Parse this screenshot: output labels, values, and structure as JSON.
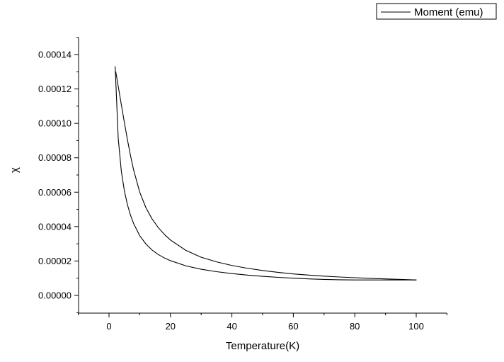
{
  "chart_data": {
    "type": "line",
    "title": "",
    "xlabel": "Temperature(K)",
    "ylabel": "χ",
    "xlim": [
      -10,
      110
    ],
    "ylim": [
      -1e-05,
      0.000155
    ],
    "x_ticks": [
      0,
      20,
      40,
      60,
      80,
      100
    ],
    "x_tick_labels": [
      "0",
      "20",
      "40",
      "60",
      "80",
      "100"
    ],
    "y_ticks": [
      0,
      2e-05,
      4e-05,
      6e-05,
      8e-05,
      0.0001,
      0.00012,
      0.00014
    ],
    "y_tick_labels": [
      "0.00000",
      "0.00002",
      "0.00004",
      "0.00006",
      "0.00008",
      "0.00010",
      "0.00012",
      "0.00014"
    ],
    "grid": false,
    "legend_position": "top-right",
    "series": [
      {
        "name": "Moment (emu)",
        "color": "#000000",
        "x": [
          2,
          3,
          4,
          5,
          6,
          7,
          8,
          10,
          12,
          14,
          16,
          18,
          20,
          25,
          30,
          35,
          40,
          45,
          50,
          55,
          60,
          65,
          70,
          75,
          80,
          85,
          90,
          95,
          100
        ],
        "y": [
          0.000133,
          9.13e-05,
          7.23e-05,
          6.08e-05,
          5.27e-05,
          4.66e-05,
          4.18e-05,
          3.47e-05,
          2.99e-05,
          2.64e-05,
          2.38e-05,
          2.18e-05,
          2.02e-05,
          1.72e-05,
          1.52e-05,
          1.38e-05,
          1.27e-05,
          1.18e-05,
          1.11e-05,
          1.05e-05,
          1e-05,
          9.6e-06,
          9.3e-06,
          9.1e-06,
          9e-06,
          9e-06,
          9e-06,
          9e-06,
          9e-06
        ]
      },
      {
        "name": "",
        "color": "#000000",
        "x": [
          100,
          95,
          90,
          85,
          80,
          75,
          70,
          65,
          60,
          55,
          50,
          45,
          40,
          35,
          30,
          25,
          20,
          18,
          16,
          14,
          12,
          10,
          8,
          7,
          6,
          5,
          4,
          3,
          2.2
        ],
        "y": [
          9e-06,
          9.3e-06,
          9.6e-06,
          9.9e-06,
          1.03e-05,
          1.07e-05,
          1.12e-05,
          1.18e-05,
          1.25e-05,
          1.34e-05,
          1.45e-05,
          1.58e-05,
          1.74e-05,
          1.95e-05,
          2.22e-05,
          2.62e-05,
          3.22e-05,
          3.55e-05,
          3.95e-05,
          4.45e-05,
          5.1e-05,
          6e-05,
          7.3e-05,
          8.12e-05,
          9.05e-05,
          0.0001005,
          0.000111,
          0.0001215,
          0.00013
        ]
      }
    ]
  }
}
